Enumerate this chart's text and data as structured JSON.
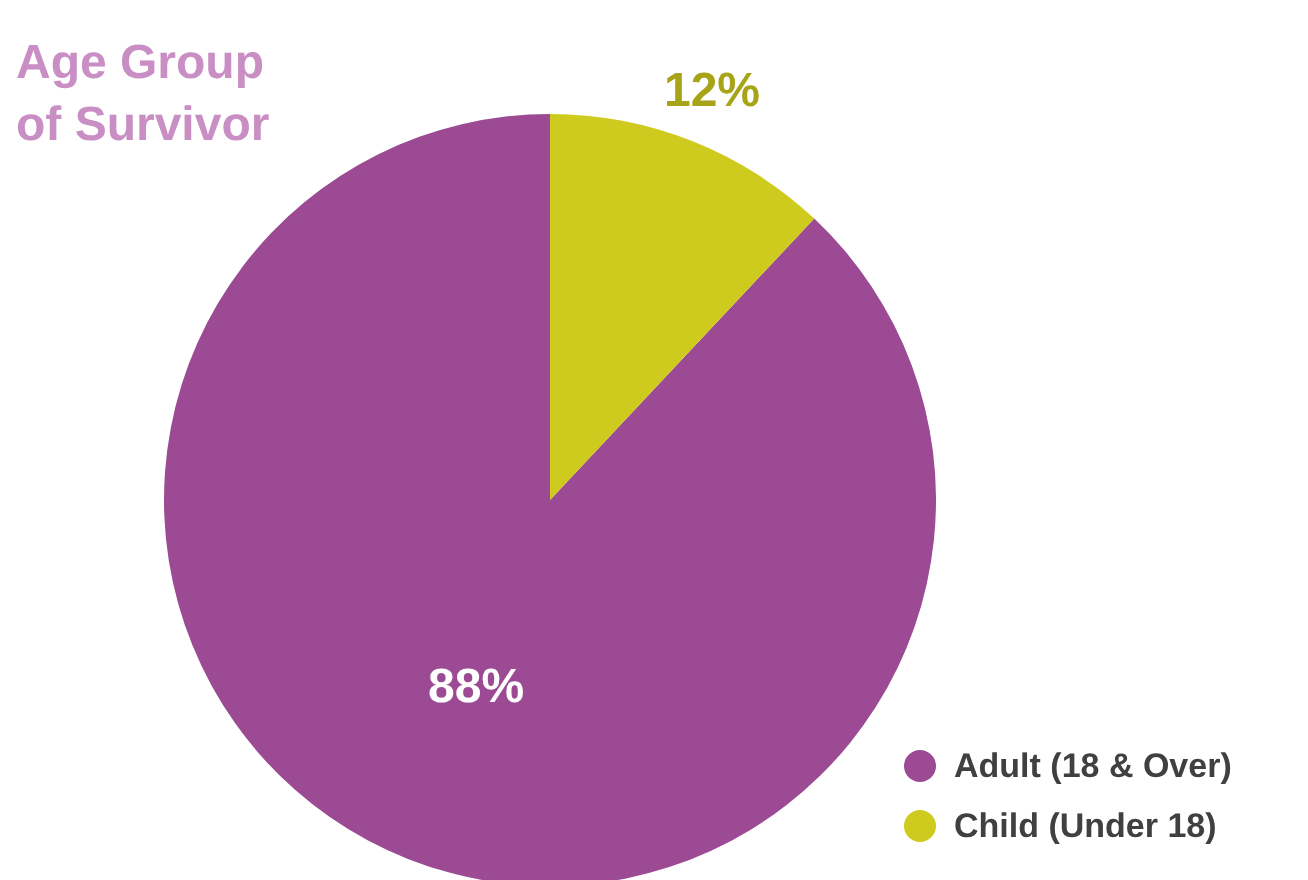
{
  "chart_data": {
    "type": "pie",
    "title": "Age Group of Survivor",
    "categories": [
      "Adult (18 & Over)",
      "Child (Under 18)"
    ],
    "values": [
      88,
      12
    ],
    "colors": [
      "#9b4a93",
      "#cfcb1e"
    ],
    "value_labels": [
      "88%",
      "12%"
    ],
    "legend": "bottom right"
  }
}
